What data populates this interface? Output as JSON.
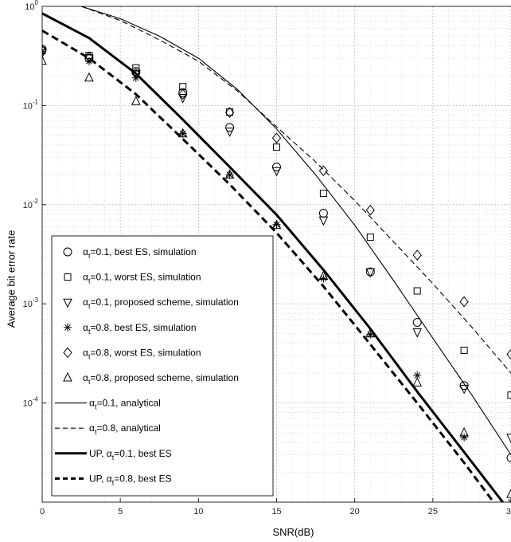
{
  "chart_data": {
    "type": "line",
    "title": "",
    "xlabel": "SNR(dB)",
    "ylabel": "Average bit error rate",
    "xlim": [
      0,
      30
    ],
    "ylim": [
      1e-05,
      1
    ],
    "yscale": "log",
    "grid": true,
    "legend_position": "lower-left",
    "x_ticks": [
      0,
      5,
      10,
      15,
      20,
      25,
      30
    ],
    "x_tick_labels": [
      "0",
      "5",
      "10",
      "15",
      "20",
      "25",
      "30"
    ],
    "y_ticks": [
      0.0001,
      0.001,
      0.01,
      0.1,
      1
    ],
    "y_tick_labels": [
      {
        "base": "10",
        "exp": "-4"
      },
      {
        "base": "10",
        "exp": "-3"
      },
      {
        "base": "10",
        "exp": "-2"
      },
      {
        "base": "10",
        "exp": "-1"
      },
      {
        "base": "10",
        "exp": "0"
      }
    ],
    "series": [
      {
        "name": "α_t=0.1, best ES, simulation",
        "label_main": "α",
        "label_sub": "t",
        "label_rest": "=0.1, best ES, simulation",
        "kind": "markers",
        "marker": "circle",
        "x": [
          0,
          3,
          6,
          9,
          12,
          15,
          18,
          21,
          24,
          27,
          30
        ],
        "y": [
          0.37,
          0.3,
          0.22,
          0.135,
          0.06,
          0.024,
          0.0082,
          0.0021,
          0.00065,
          0.00015,
          2.8e-05
        ]
      },
      {
        "name": "α_t=0.1, worst ES, simulation",
        "label_main": "α",
        "label_sub": "t",
        "label_rest": "=0.1, worst ES, simulation",
        "kind": "markers",
        "marker": "square",
        "x": [
          0,
          3,
          6,
          9,
          12,
          15,
          18,
          21,
          24,
          27,
          30
        ],
        "y": [
          0.36,
          0.32,
          0.24,
          0.155,
          0.086,
          0.038,
          0.013,
          0.0047,
          0.00135,
          0.00034,
          0.00012
        ]
      },
      {
        "name": "α_t=0.1, proposed scheme, simulation",
        "label_main": "α",
        "label_sub": "t",
        "label_rest": "=0.1, proposed scheme, simulation",
        "kind": "markers",
        "marker": "triangle-down",
        "x": [
          0,
          3,
          6,
          9,
          12,
          15,
          18,
          21,
          24,
          27,
          30
        ],
        "y": [
          0.34,
          0.3,
          0.21,
          0.12,
          0.055,
          0.022,
          0.007,
          0.0021,
          0.00052,
          0.00014,
          4.5e-05
        ]
      },
      {
        "name": "α_t=0.8, best ES, simulation",
        "label_main": "α",
        "label_sub": "t",
        "label_rest": "=0.8, best ES, simulation",
        "kind": "markers",
        "marker": "star",
        "x": [
          0,
          3,
          6,
          9,
          12,
          15,
          18,
          21,
          24,
          27,
          30
        ],
        "y": [
          0.35,
          0.28,
          0.19,
          0.052,
          0.02,
          0.0063,
          0.0018,
          0.00049,
          0.00019,
          4.5e-05,
          1e-05
        ]
      },
      {
        "name": "α_t=0.8, worst ES, simulation",
        "label_main": "α",
        "label_sub": "t",
        "label_rest": "=0.8, worst ES, simulation",
        "kind": "markers",
        "marker": "diamond",
        "x": [
          0,
          3,
          6,
          9,
          12,
          15,
          18,
          21,
          24,
          27,
          30
        ],
        "y": [
          0.36,
          0.31,
          0.21,
          0.13,
          0.085,
          0.047,
          0.022,
          0.0088,
          0.0031,
          0.00105,
          0.00031
        ]
      },
      {
        "name": "α_t=0.8, proposed scheme, simulation",
        "label_main": "α",
        "label_sub": "t",
        "label_rest": "=0.8, proposed scheme, simulation",
        "kind": "markers",
        "marker": "triangle-up",
        "x": [
          0,
          3,
          6,
          9,
          12,
          15,
          18,
          21,
          24,
          27,
          30
        ],
        "y": [
          0.28,
          0.19,
          0.11,
          0.052,
          0.02,
          0.0062,
          0.0019,
          0.0005,
          0.00016,
          5e-05,
          1.2e-05
        ]
      },
      {
        "name": "α_t=0.1, analytical",
        "label_main": "α",
        "label_sub": "t",
        "label_rest": "=0.1, analytical",
        "kind": "line",
        "style": "thin-solid",
        "x": [
          2.5,
          5,
          7.5,
          10,
          12.5,
          15,
          17.5,
          20,
          22.5,
          25,
          27.5,
          30
        ],
        "y": [
          1.0,
          0.75,
          0.5,
          0.3,
          0.145,
          0.058,
          0.02,
          0.0062,
          0.0017,
          0.00045,
          0.00012,
          3e-05
        ]
      },
      {
        "name": "α_t=0.8, analytical",
        "label_main": "α",
        "label_sub": "t",
        "label_rest": "=0.8, analytical",
        "kind": "line",
        "style": "thin-dashed",
        "x": [
          2.5,
          5,
          7.5,
          10,
          12.5,
          15,
          17.5,
          20,
          22.5,
          25,
          27.5,
          30
        ],
        "y": [
          1.0,
          0.72,
          0.46,
          0.28,
          0.14,
          0.061,
          0.027,
          0.011,
          0.0042,
          0.0016,
          0.00058,
          0.0002
        ]
      },
      {
        "name": "UP, α_t=0.1, best ES",
        "label_main": "UP,  α",
        "label_sub": "t",
        "label_rest": "=0.1, best ES",
        "kind": "line",
        "style": "thick-solid",
        "x": [
          0,
          3,
          6,
          9,
          12,
          15,
          18,
          21,
          24,
          27,
          30
        ],
        "y": [
          0.85,
          0.48,
          0.21,
          0.072,
          0.024,
          0.0079,
          0.0022,
          0.00056,
          0.00013,
          3.2e-05,
          7.8e-06
        ]
      },
      {
        "name": "UP, α_t=0.8, best ES",
        "label_main": "UP,  α",
        "label_sub": "t",
        "label_rest": "=0.8, best ES",
        "kind": "line",
        "style": "thick-dashed",
        "x": [
          0,
          3,
          6,
          9,
          12,
          15,
          18,
          21,
          24,
          27,
          30
        ],
        "y": [
          0.57,
          0.3,
          0.13,
          0.046,
          0.016,
          0.0052,
          0.0015,
          0.00039,
          0.0001,
          2.5e-05,
          5.8e-06
        ]
      }
    ]
  }
}
